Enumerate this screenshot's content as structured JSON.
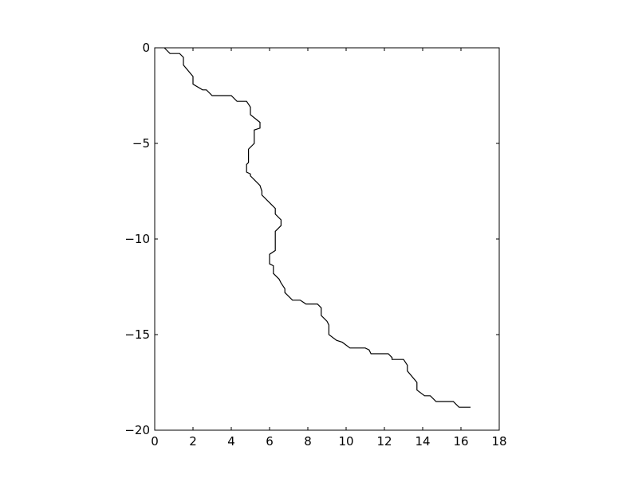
{
  "chart_data": {
    "type": "line",
    "title": "",
    "xlabel": "",
    "ylabel": "",
    "xlim": [
      0,
      18
    ],
    "ylim": [
      -20,
      0
    ],
    "grid": false,
    "x_ticks": [
      0,
      2,
      4,
      6,
      8,
      10,
      12,
      14,
      16,
      18
    ],
    "x_tick_labels": [
      "0",
      "2",
      "4",
      "6",
      "8",
      "10",
      "12",
      "14",
      "16",
      "18"
    ],
    "y_ticks": [
      0,
      -5,
      -10,
      -15,
      -20
    ],
    "y_tick_labels": [
      "0",
      "−5",
      "−10",
      "−15",
      "−20"
    ],
    "line_color": "#000000",
    "series": [
      {
        "x": [
          0.5,
          0.8,
          1.3,
          1.5,
          1.5,
          2.0,
          2.0,
          2.5,
          2.7,
          3.0,
          4.0,
          4.3,
          4.8,
          5.0,
          5.0,
          5.5,
          5.5,
          5.2,
          5.2,
          4.9,
          4.9,
          4.8,
          4.8,
          5.0,
          5.0,
          5.5,
          5.6,
          5.6,
          6.0,
          6.3,
          6.3,
          6.6,
          6.6,
          6.3,
          6.3,
          6.0,
          6.0,
          6.2,
          6.2,
          6.5,
          6.6,
          6.8,
          6.8,
          7.2,
          7.6,
          7.9,
          8.5,
          8.7,
          8.7,
          9.0,
          9.1,
          9.1,
          9.5,
          9.8,
          10.2,
          11.0,
          11.2,
          11.3,
          12.2,
          12.4,
          12.4,
          13.0,
          13.2,
          13.2,
          13.7,
          13.7,
          14.1,
          14.4,
          14.7,
          15.6,
          15.9,
          16.5
        ],
        "y": [
          0.0,
          -0.3,
          -0.3,
          -0.5,
          -0.9,
          -1.5,
          -1.9,
          -2.2,
          -2.2,
          -2.5,
          -2.5,
          -2.8,
          -2.8,
          -3.1,
          -3.5,
          -3.9,
          -4.2,
          -4.3,
          -5.0,
          -5.3,
          -6.0,
          -6.1,
          -6.5,
          -6.6,
          -6.7,
          -7.2,
          -7.5,
          -7.7,
          -8.1,
          -8.4,
          -8.7,
          -9.0,
          -9.3,
          -9.6,
          -10.6,
          -10.8,
          -11.3,
          -11.4,
          -11.8,
          -12.1,
          -12.3,
          -12.6,
          -12.8,
          -13.2,
          -13.2,
          -13.4,
          -13.4,
          -13.6,
          -14.0,
          -14.3,
          -14.5,
          -15.0,
          -15.3,
          -15.4,
          -15.7,
          -15.7,
          -15.8,
          -16.0,
          -16.0,
          -16.2,
          -16.3,
          -16.3,
          -16.6,
          -16.9,
          -17.5,
          -17.9,
          -18.2,
          -18.2,
          -18.5,
          -18.5,
          -18.8,
          -18.8
        ]
      }
    ]
  }
}
